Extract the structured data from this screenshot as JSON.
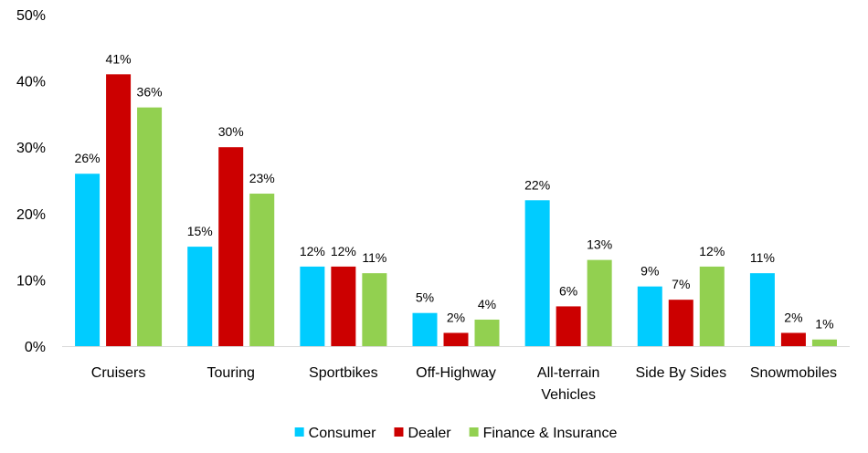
{
  "chart_data": {
    "type": "bar",
    "categories": [
      [
        "Cruisers"
      ],
      [
        "Touring"
      ],
      [
        "Sportbikes"
      ],
      [
        "Off-Highway"
      ],
      [
        "All-terrain",
        "Vehicles"
      ],
      [
        "Side By Sides"
      ],
      [
        "Snowmobiles"
      ]
    ],
    "series": [
      {
        "name": "Consumer",
        "color": "#00ccff",
        "values": [
          26,
          15,
          12,
          5,
          22,
          9,
          11
        ]
      },
      {
        "name": "Dealer",
        "color": "#cc0000",
        "values": [
          41,
          30,
          12,
          2,
          6,
          7,
          2
        ]
      },
      {
        "name": "Finance & Insurance",
        "color": "#92d050",
        "values": [
          36,
          23,
          11,
          4,
          13,
          12,
          1
        ]
      }
    ],
    "value_suffix": "%",
    "ylim": [
      0,
      50
    ],
    "yticks": [
      "0%",
      "10%",
      "20%",
      "30%",
      "40%",
      "50%"
    ],
    "grid": false,
    "legend_position": "bottom"
  }
}
